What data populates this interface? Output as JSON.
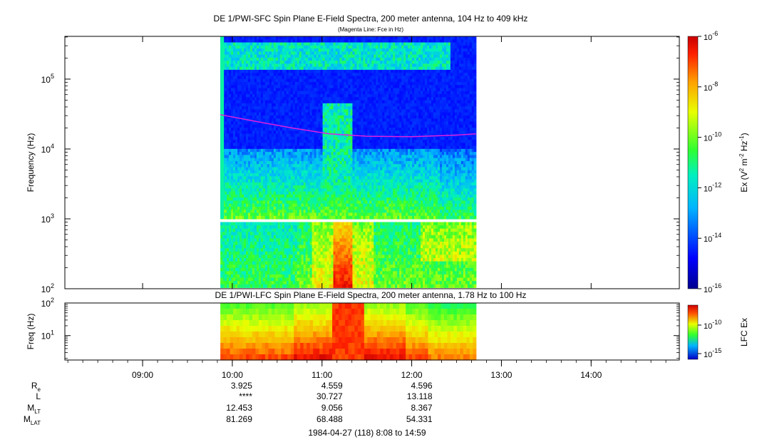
{
  "top_panel": {
    "title": "DE 1/PWI-SFC  Spin Plane E-Field Spectra, 200 meter antenna, 104 Hz to 409 kHz",
    "subtitle": "(Magenta Line: Fce in Hz)",
    "ylabel": "Frequency (Hz)",
    "colorbar_label": "Ex (V² m⁻² Hz⁻¹)",
    "colorbar_ticks": [
      "10",
      "10",
      "10",
      "10",
      "10",
      "10"
    ],
    "colorbar_exps": [
      "-6",
      "-8",
      "-10",
      "-12",
      "-14",
      "-16"
    ]
  },
  "bottom_panel": {
    "title": "DE 1/PWI-LFC  Spin Plane E-Field Spectra, 200 meter antenna, 1.78 Hz to 100 Hz",
    "ylabel": "Freq (Hz)",
    "colorbar_label": "LFC Ex",
    "colorbar_ticks": [
      "10",
      "10"
    ],
    "colorbar_exps": [
      "-10",
      "-15"
    ]
  },
  "ephemeris": {
    "labels": [
      "R",
      "L",
      "M",
      "M"
    ],
    "subscripts": [
      "e",
      "",
      "LT",
      "LAT"
    ],
    "rows": [
      [
        "3.925",
        "4.559",
        "4.596"
      ],
      [
        "****",
        "30.727",
        "13.118"
      ],
      [
        "12.453",
        "9.056",
        "8.367"
      ],
      [
        "81.269",
        "68.488",
        "54.331"
      ]
    ]
  },
  "footer": "1984-04-27 (118) 8:08 to 14:59",
  "colors": {
    "background_data": "#0030c8",
    "fce_line": "#e020e0"
  },
  "chart_data": [
    {
      "type": "heatmap",
      "title": "DE 1/PWI-SFC  Spin Plane E-Field Spectra, 200 meter antenna, 104 Hz to 409 kHz",
      "subtitle": "(Magenta Line: Fce in Hz)",
      "ylabel": "Frequency (Hz)",
      "yscale": "log",
      "ylim": [
        100,
        409000
      ],
      "y_ticks": [
        "10²",
        "10³",
        "10⁴",
        "10⁵"
      ],
      "xlim": [
        "08:08",
        "14:59"
      ],
      "x_ticks": [
        "09:00",
        "10:00",
        "11:00",
        "12:00",
        "13:00",
        "14:00"
      ],
      "data_coverage": [
        "09:52",
        "12:43"
      ],
      "colorbar": {
        "label": "Ex (V² m⁻² Hz⁻¹)",
        "scale": "log",
        "range": [
          1e-16,
          1e-06
        ]
      },
      "series": [
        {
          "name": "Fce",
          "x": [
            "09:52",
            "10:15",
            "10:40",
            "11:05",
            "11:30",
            "12:00",
            "12:30",
            "12:43"
          ],
          "y": [
            31000,
            25000,
            20000,
            16500,
            15200,
            15000,
            15800,
            16500
          ]
        }
      ]
    },
    {
      "type": "heatmap",
      "title": "DE 1/PWI-LFC  Spin Plane E-Field Spectra, 200 meter antenna, 1.78 Hz to 100 Hz",
      "ylabel": "Freq (Hz)",
      "yscale": "log",
      "ylim": [
        1.78,
        100
      ],
      "y_ticks": [
        "10¹",
        "10²"
      ],
      "xlim": [
        "08:08",
        "14:59"
      ],
      "data_coverage": [
        "09:52",
        "12:43"
      ],
      "colorbar": {
        "label": "LFC Ex",
        "scale": "log",
        "range": [
          1e-16,
          1e-07
        ]
      }
    }
  ]
}
